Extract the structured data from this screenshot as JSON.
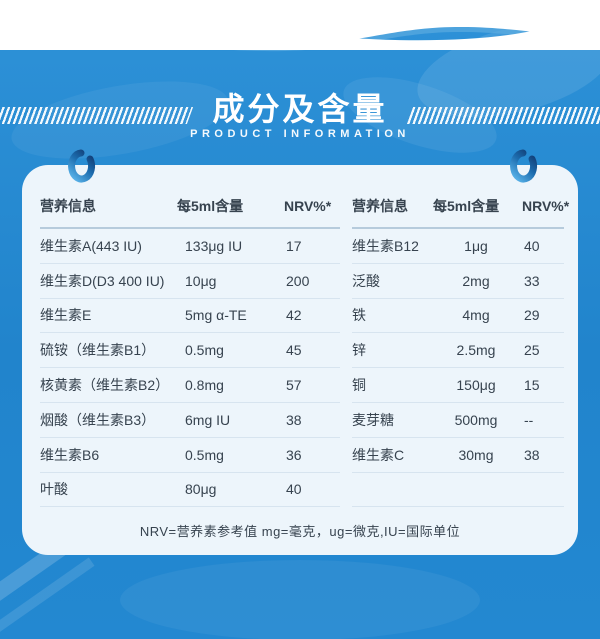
{
  "header": {
    "title": "成分及含量",
    "subtitle": "PRODUCT INFORMATION"
  },
  "table_left": {
    "columns": [
      "营养信息",
      "每5ml含量",
      "NRV%*"
    ],
    "rows": [
      [
        "维生素A(443 IU)",
        "133μg IU",
        "17"
      ],
      [
        "维生素D(D3 400 IU)",
        "10μg",
        "200"
      ],
      [
        "维生素E",
        "5mg α-TE",
        "42"
      ],
      [
        "硫铵（维生素B1）",
        "0.5mg",
        "45"
      ],
      [
        "核黄素（维生素B2）",
        "0.8mg",
        "57"
      ],
      [
        "烟酸（维生素B3）",
        "6mg IU",
        "38"
      ],
      [
        "维生素B6",
        "0.5mg",
        "36"
      ],
      [
        "叶酸",
        "80μg",
        "40"
      ]
    ]
  },
  "table_right": {
    "columns": [
      "营养信息",
      "每5ml含量",
      "NRV%*"
    ],
    "rows": [
      [
        "维生素B12",
        "1μg",
        "40"
      ],
      [
        "泛酸",
        "2mg",
        "33"
      ],
      [
        "铁",
        "4mg",
        "29"
      ],
      [
        "锌",
        "2.5mg",
        "25"
      ],
      [
        "铜",
        "150μg",
        "15"
      ],
      [
        "麦芽糖",
        "500mg",
        "--"
      ],
      [
        "维生素C",
        "30mg",
        "38"
      ],
      [
        "",
        "",
        ""
      ]
    ]
  },
  "footnote": "NRV=营养素参考值  mg=毫克，ug=微克,IU=国际单位",
  "colors": {
    "background_blue": "#2287d0",
    "card_background": "#edf5fb",
    "text_dark": "#37434f",
    "divider": "#d7e4ef",
    "header_divider": "#b6cbdc",
    "white": "#ffffff"
  }
}
